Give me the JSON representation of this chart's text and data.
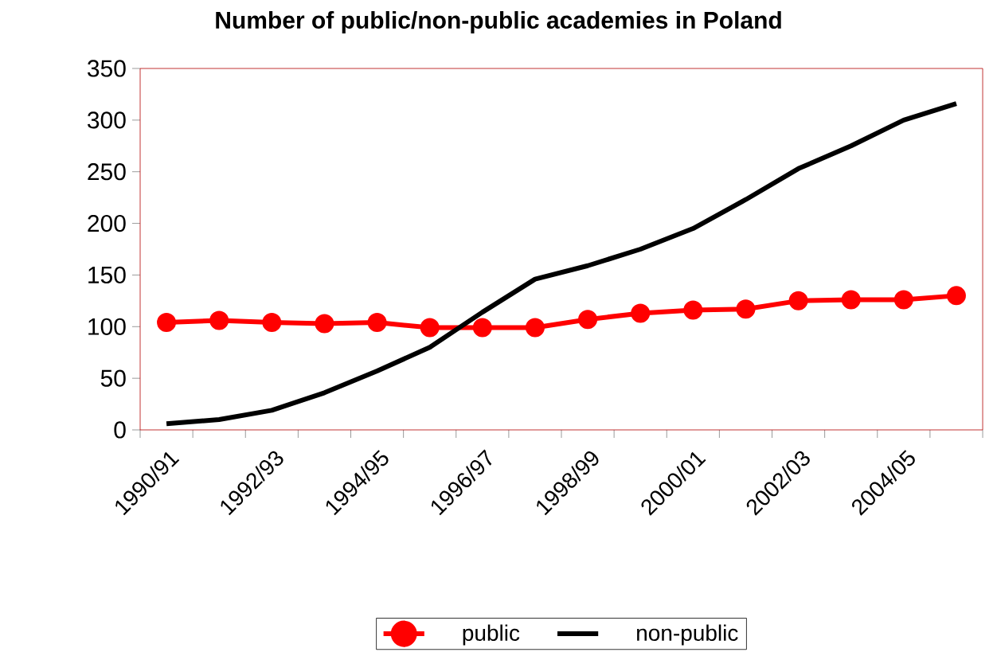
{
  "chart_data": {
    "type": "line",
    "title": "Number of public/non-public academies in Poland",
    "categories": [
      "1990/91",
      null,
      "1992/93",
      null,
      "1994/95",
      null,
      "1996/97",
      null,
      "1998/99",
      null,
      "2000/01",
      null,
      "2002/03",
      null,
      "2004/05",
      null
    ],
    "series": [
      {
        "name": "public",
        "color": "#ff0000",
        "marker": "circle",
        "values": [
          104,
          106,
          104,
          103,
          104,
          99,
          99,
          99,
          107,
          113,
          116,
          117,
          125,
          126,
          126,
          130
        ]
      },
      {
        "name": "non-public",
        "color": "#000000",
        "marker": "none",
        "values": [
          6,
          10,
          19,
          36,
          57,
          80,
          114,
          146,
          159,
          175,
          195,
          223,
          253,
          275,
          300,
          316
        ]
      }
    ],
    "ylim": [
      0,
      350
    ],
    "yticks": [
      0,
      50,
      100,
      150,
      200,
      250,
      300,
      350
    ],
    "grid": false,
    "legend": "bottom",
    "line_style": "solid"
  }
}
